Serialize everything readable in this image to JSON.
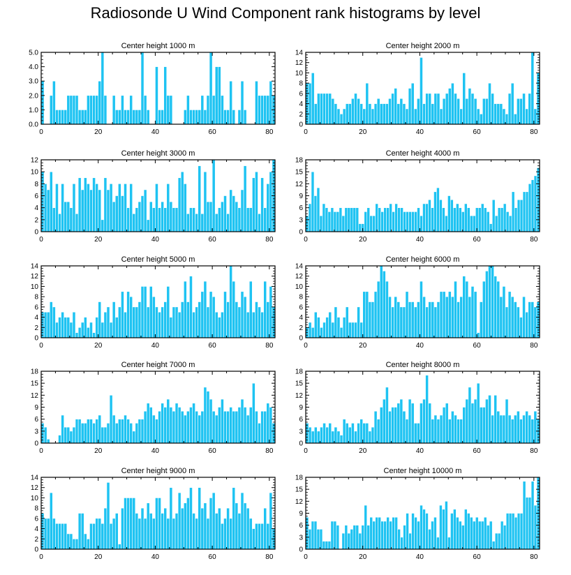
{
  "figure_title": "Radiosonde U Wind Component rank histograms by level",
  "colors": {
    "bar": "#1EC3F2",
    "bar_edge": "#ffffff",
    "axis": "#000000"
  },
  "chart_data": [
    {
      "type": "bar",
      "title": "Center height 1000 m",
      "xlim": [
        0,
        82
      ],
      "xticks": [
        0,
        20,
        40,
        60,
        80
      ],
      "ylim": [
        0,
        5
      ],
      "yticks": [
        "0.0",
        "1.0",
        "2.0",
        "3.0",
        "4.0",
        "5.0"
      ],
      "values": [
        3,
        0,
        0,
        2,
        3,
        1,
        1,
        1,
        1,
        2,
        2,
        2,
        2,
        1,
        1,
        1,
        2,
        2,
        2,
        2,
        3,
        5,
        2,
        0,
        0,
        2,
        1,
        1,
        2,
        1,
        1,
        2,
        1,
        1,
        1,
        5,
        2,
        1,
        0,
        0,
        4,
        1,
        1,
        4,
        2,
        2,
        0,
        0,
        0,
        0,
        1,
        2,
        1,
        1,
        1,
        1,
        2,
        1,
        2,
        5,
        2,
        4,
        4,
        2,
        1,
        1,
        3,
        1,
        0,
        1,
        3,
        1,
        0,
        0,
        0,
        3,
        2,
        2,
        2,
        2,
        3,
        2
      ]
    },
    {
      "type": "bar",
      "title": "Center height 2000 m",
      "xlim": [
        0,
        82
      ],
      "xticks": [
        0,
        20,
        40,
        60,
        80
      ],
      "ylim": [
        0,
        14
      ],
      "yticks": [
        "0",
        "2",
        "4",
        "6",
        "8",
        "10",
        "12",
        "14"
      ],
      "values": [
        8,
        8,
        10,
        4,
        6,
        6,
        6,
        6,
        6,
        5,
        4,
        3,
        2,
        3,
        4,
        4,
        5,
        6,
        5,
        4,
        3,
        8,
        4,
        3,
        4,
        5,
        4,
        4,
        4,
        5,
        6,
        7,
        4,
        5,
        4,
        3,
        7,
        8,
        3,
        5,
        13,
        4,
        6,
        6,
        4,
        6,
        6,
        3,
        5,
        6,
        7,
        8,
        6,
        5,
        3,
        10,
        5,
        7,
        6,
        5,
        3,
        2,
        5,
        5,
        8,
        6,
        4,
        4,
        4,
        3,
        2,
        6,
        8,
        2,
        5,
        5,
        6,
        3,
        6,
        14,
        3,
        10
      ]
    },
    {
      "type": "bar",
      "title": "Center height 3000 m",
      "xlim": [
        0,
        82
      ],
      "xticks": [
        0,
        20,
        40,
        60,
        80
      ],
      "ylim": [
        0,
        12
      ],
      "yticks": [
        "0",
        "2",
        "4",
        "6",
        "8",
        "10",
        "12"
      ],
      "values": [
        10,
        8,
        7,
        10,
        4,
        8,
        3,
        8,
        5,
        5,
        4,
        8,
        3,
        9,
        7,
        9,
        8,
        7,
        9,
        8,
        7,
        2,
        9,
        7,
        8,
        5,
        6,
        8,
        6,
        8,
        4,
        8,
        3,
        4,
        5,
        6,
        7,
        2,
        5,
        4,
        8,
        4,
        5,
        4,
        8,
        5,
        4,
        4,
        9,
        10,
        8,
        3,
        4,
        4,
        3,
        11,
        3,
        10,
        5,
        5,
        12,
        3,
        4,
        5,
        6,
        3,
        7,
        6,
        5,
        4,
        7,
        11,
        4,
        4,
        9,
        10,
        3,
        9,
        4,
        8,
        10,
        12
      ]
    },
    {
      "type": "bar",
      "title": "Center height 4000 m",
      "xlim": [
        0,
        82
      ],
      "xticks": [
        0,
        20,
        40,
        60,
        80
      ],
      "ylim": [
        0,
        18
      ],
      "yticks": [
        "0",
        "3",
        "6",
        "9",
        "12",
        "15",
        "18"
      ],
      "values": [
        4,
        7,
        15,
        9,
        11,
        4,
        7,
        6,
        5,
        6,
        5,
        5,
        6,
        4,
        6,
        6,
        6,
        6,
        6,
        2,
        2,
        5,
        6,
        4,
        4,
        7,
        6,
        5,
        6,
        6,
        7,
        5,
        7,
        6,
        6,
        5,
        5,
        5,
        5,
        5,
        6,
        4,
        7,
        7,
        8,
        6,
        10,
        11,
        8,
        6,
        4,
        9,
        8,
        6,
        7,
        6,
        5,
        7,
        6,
        4,
        4,
        6,
        6,
        7,
        6,
        5,
        2,
        8,
        4,
        6,
        6,
        7,
        5,
        4,
        10,
        6,
        8,
        8,
        10,
        10,
        12,
        13,
        14,
        16
      ]
    },
    {
      "type": "bar",
      "title": "Center height 5000 m",
      "xlim": [
        0,
        82
      ],
      "xticks": [
        0,
        20,
        40,
        60,
        80
      ],
      "ylim": [
        0,
        14
      ],
      "yticks": [
        "0",
        "2",
        "4",
        "6",
        "8",
        "10",
        "12",
        "14"
      ],
      "values": [
        5,
        5,
        5,
        7,
        6,
        3,
        4,
        5,
        4,
        4,
        3,
        5,
        1,
        2,
        3,
        4,
        2,
        3,
        1,
        4,
        7,
        3,
        5,
        6,
        3,
        7,
        4,
        6,
        9,
        5,
        9,
        8,
        6,
        6,
        7,
        10,
        10,
        6,
        10,
        8,
        6,
        5,
        6,
        7,
        10,
        4,
        6,
        6,
        5,
        7,
        11,
        7,
        12,
        5,
        6,
        7,
        9,
        11,
        6,
        9,
        8,
        5,
        4,
        5,
        9,
        7,
        14,
        11,
        7,
        6,
        9,
        8,
        5,
        11,
        5,
        7,
        6,
        5,
        11,
        7,
        10,
        6
      ]
    },
    {
      "type": "bar",
      "title": "Center height 6000 m",
      "xlim": [
        0,
        82
      ],
      "xticks": [
        0,
        20,
        40,
        60,
        80
      ],
      "ylim": [
        0,
        14
      ],
      "yticks": [
        "0",
        "2",
        "4",
        "6",
        "8",
        "10",
        "12",
        "14"
      ],
      "values": [
        2,
        3,
        2,
        5,
        4,
        2,
        3,
        4,
        5,
        3,
        6,
        4,
        2,
        4,
        6,
        3,
        3,
        3,
        6,
        3,
        9,
        9,
        7,
        7,
        9,
        11,
        14,
        13,
        11,
        8,
        6,
        8,
        7,
        6,
        6,
        9,
        7,
        7,
        6,
        7,
        11,
        8,
        6,
        7,
        7,
        6,
        7,
        9,
        9,
        8,
        9,
        8,
        11,
        7,
        8,
        12,
        11,
        8,
        10,
        9,
        1,
        7,
        11,
        13,
        14,
        14,
        12,
        11,
        8,
        10,
        6,
        9,
        8,
        7,
        6,
        4,
        8,
        5,
        7,
        7,
        6,
        7
      ]
    },
    {
      "type": "bar",
      "title": "Center height 7000 m",
      "xlim": [
        0,
        82
      ],
      "xticks": [
        0,
        20,
        40,
        60,
        80
      ],
      "ylim": [
        0,
        18
      ],
      "yticks": [
        "0",
        "3",
        "6",
        "9",
        "12",
        "15",
        "18"
      ],
      "values": [
        5,
        4,
        1,
        0,
        0,
        0,
        2,
        7,
        4,
        4,
        3,
        4,
        6,
        6,
        5,
        5,
        6,
        6,
        5,
        6,
        7,
        4,
        4,
        5,
        12,
        7,
        5,
        6,
        6,
        7,
        6,
        5,
        3,
        5,
        6,
        6,
        8,
        10,
        9,
        7,
        6,
        8,
        10,
        9,
        11,
        9,
        8,
        10,
        9,
        8,
        7,
        8,
        9,
        10,
        8,
        7,
        8,
        14,
        13,
        11,
        8,
        7,
        9,
        11,
        8,
        8,
        9,
        8,
        8,
        9,
        11,
        9,
        7,
        9,
        15,
        8,
        5,
        8,
        8,
        10,
        9,
        5
      ]
    },
    {
      "type": "bar",
      "title": "Center height 8000 m",
      "xlim": [
        0,
        82
      ],
      "xticks": [
        0,
        20,
        40,
        60,
        80
      ],
      "ylim": [
        0,
        18
      ],
      "yticks": [
        "0",
        "3",
        "6",
        "9",
        "12",
        "15",
        "18"
      ],
      "values": [
        5,
        4,
        3,
        4,
        3,
        4,
        5,
        4,
        5,
        3,
        4,
        3,
        2,
        6,
        5,
        4,
        5,
        3,
        5,
        6,
        5,
        5,
        3,
        4,
        8,
        6,
        9,
        11,
        14,
        8,
        9,
        9,
        10,
        11,
        8,
        6,
        11,
        10,
        5,
        5,
        10,
        11,
        17,
        10,
        6,
        7,
        6,
        7,
        9,
        10,
        6,
        8,
        7,
        6,
        6,
        9,
        11,
        14,
        10,
        11,
        15,
        9,
        9,
        11,
        12,
        7,
        12,
        8,
        7,
        7,
        11,
        7,
        6,
        7,
        8,
        6,
        7,
        8,
        7,
        6,
        8,
        6
      ]
    },
    {
      "type": "bar",
      "title": "Center height 9000 m",
      "xlim": [
        0,
        82
      ],
      "xticks": [
        0,
        20,
        40,
        60,
        80
      ],
      "ylim": [
        0,
        14
      ],
      "yticks": [
        "0",
        "2",
        "4",
        "6",
        "8",
        "10",
        "12",
        "14"
      ],
      "values": [
        7,
        6,
        6,
        11,
        6,
        5,
        5,
        5,
        5,
        3,
        3,
        2,
        2,
        7,
        7,
        3,
        2,
        5,
        5,
        6,
        6,
        5,
        8,
        13,
        5,
        6,
        7,
        1,
        8,
        10,
        10,
        10,
        10,
        7,
        6,
        8,
        6,
        9,
        7,
        6,
        10,
        10,
        7,
        8,
        6,
        12,
        6,
        7,
        11,
        8,
        9,
        10,
        12,
        7,
        6,
        12,
        8,
        9,
        6,
        10,
        11,
        7,
        8,
        5,
        6,
        8,
        6,
        12,
        9,
        7,
        11,
        9,
        8,
        6,
        4,
        5,
        5,
        5,
        8,
        5,
        11,
        4
      ]
    },
    {
      "type": "bar",
      "title": "Center height 10000 m",
      "xlim": [
        0,
        82
      ],
      "xticks": [
        0,
        20,
        40,
        60,
        80
      ],
      "ylim": [
        0,
        18
      ],
      "yticks": [
        "0",
        "3",
        "6",
        "9",
        "12",
        "15",
        "18"
      ],
      "values": [
        8,
        5,
        7,
        7,
        5,
        5,
        2,
        2,
        2,
        7,
        7,
        6,
        0,
        4,
        6,
        4,
        5,
        6,
        6,
        4,
        6,
        11,
        6,
        8,
        7,
        8,
        8,
        7,
        7,
        8,
        7,
        8,
        8,
        5,
        3,
        6,
        9,
        4,
        9,
        8,
        7,
        11,
        10,
        9,
        5,
        7,
        8,
        3,
        11,
        10,
        12,
        3,
        9,
        10,
        8,
        7,
        6,
        10,
        9,
        8,
        7,
        8,
        7,
        7,
        8,
        6,
        7,
        2,
        4,
        4,
        7,
        6,
        9,
        9,
        9,
        8,
        9,
        9,
        17,
        13,
        13,
        17,
        11,
        18
      ]
    }
  ]
}
